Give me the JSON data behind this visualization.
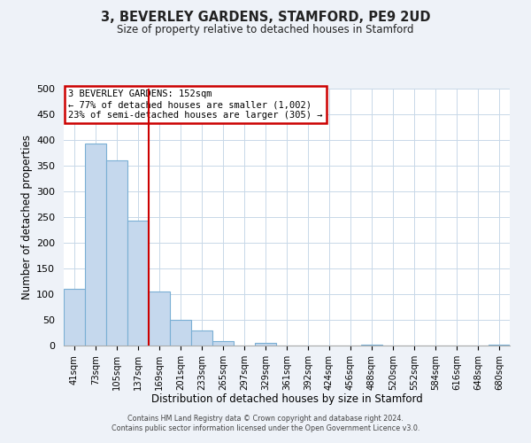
{
  "title": "3, BEVERLEY GARDENS, STAMFORD, PE9 2UD",
  "subtitle": "Size of property relative to detached houses in Stamford",
  "xlabel": "Distribution of detached houses by size in Stamford",
  "ylabel": "Number of detached properties",
  "bar_labels": [
    "41sqm",
    "73sqm",
    "105sqm",
    "137sqm",
    "169sqm",
    "201sqm",
    "233sqm",
    "265sqm",
    "297sqm",
    "329sqm",
    "361sqm",
    "392sqm",
    "424sqm",
    "456sqm",
    "488sqm",
    "520sqm",
    "552sqm",
    "584sqm",
    "616sqm",
    "648sqm",
    "680sqm"
  ],
  "bar_values": [
    111,
    393,
    360,
    243,
    105,
    50,
    30,
    8,
    0,
    5,
    0,
    0,
    0,
    0,
    2,
    0,
    0,
    0,
    0,
    0,
    2
  ],
  "bar_color": "#c5d8ed",
  "bar_edge_color": "#7aafd4",
  "vline_color": "#cc0000",
  "ylim": [
    0,
    500
  ],
  "yticks": [
    0,
    50,
    100,
    150,
    200,
    250,
    300,
    350,
    400,
    450,
    500
  ],
  "annotation_box_text": [
    "3 BEVERLEY GARDENS: 152sqm",
    "← 77% of detached houses are smaller (1,002)",
    "23% of semi-detached houses are larger (305) →"
  ],
  "annotation_box_color": "#cc0000",
  "footer_line1": "Contains HM Land Registry data © Crown copyright and database right 2024.",
  "footer_line2": "Contains public sector information licensed under the Open Government Licence v3.0.",
  "bg_color": "#eef2f8",
  "plot_bg_color": "#ffffff",
  "grid_color": "#c8d8e8",
  "vline_pos": 3.5
}
